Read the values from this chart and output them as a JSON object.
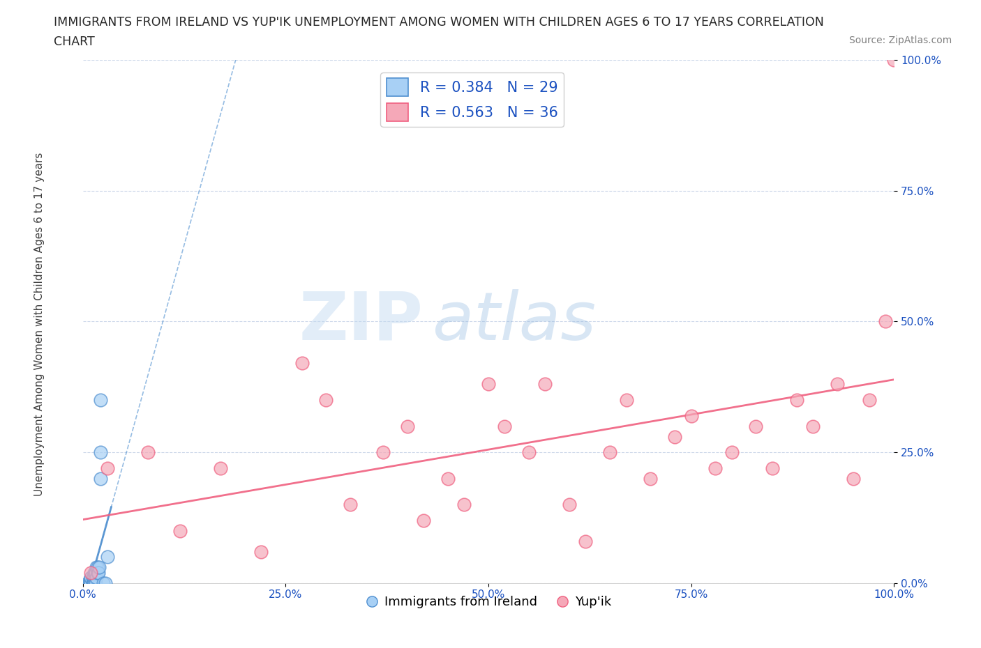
{
  "title_line1": "IMMIGRANTS FROM IRELAND VS YUP'IK UNEMPLOYMENT AMONG WOMEN WITH CHILDREN AGES 6 TO 17 YEARS CORRELATION",
  "title_line2": "CHART",
  "source": "Source: ZipAtlas.com",
  "ylabel": "Unemployment Among Women with Children Ages 6 to 17 years",
  "xlim": [
    0,
    1
  ],
  "ylim": [
    0,
    1
  ],
  "legend_ireland_R": "0.384",
  "legend_ireland_N": "29",
  "legend_yupik_R": "0.563",
  "legend_yupik_N": "36",
  "ireland_color": "#a8d0f5",
  "yupik_color": "#f5a8b8",
  "ireland_trend_color": "#5090d0",
  "yupik_trend_color": "#f06080",
  "watermark_zip": "ZIP",
  "watermark_atlas": "atlas",
  "background_color": "#ffffff",
  "grid_color": "#c8d4e8",
  "title_color": "#282828",
  "legend_text_color": "#1a50c0",
  "ireland_x": [
    0.005,
    0.007,
    0.008,
    0.009,
    0.01,
    0.01,
    0.01,
    0.012,
    0.012,
    0.013,
    0.013,
    0.014,
    0.014,
    0.015,
    0.015,
    0.016,
    0.016,
    0.017,
    0.017,
    0.018,
    0.018,
    0.019,
    0.02,
    0.022,
    0.025,
    0.028,
    0.03,
    0.022,
    0.022
  ],
  "ireland_y": [
    0.0,
    0.0,
    0.0,
    0.0,
    0.0,
    0.01,
    0.01,
    0.0,
    0.01,
    0.0,
    0.01,
    0.0,
    0.02,
    0.01,
    0.02,
    0.0,
    0.02,
    0.01,
    0.03,
    0.02,
    0.03,
    0.02,
    0.03,
    0.2,
    0.0,
    0.0,
    0.05,
    0.35,
    0.25
  ],
  "yupik_x": [
    0.01,
    0.03,
    0.08,
    0.12,
    0.17,
    0.22,
    0.27,
    0.3,
    0.33,
    0.37,
    0.4,
    0.42,
    0.45,
    0.47,
    0.5,
    0.52,
    0.55,
    0.57,
    0.6,
    0.62,
    0.65,
    0.67,
    0.7,
    0.73,
    0.75,
    0.78,
    0.8,
    0.83,
    0.85,
    0.88,
    0.9,
    0.93,
    0.95,
    0.97,
    0.99,
    1.0
  ],
  "yupik_y": [
    0.02,
    0.22,
    0.25,
    0.1,
    0.22,
    0.06,
    0.42,
    0.35,
    0.15,
    0.25,
    0.3,
    0.12,
    0.2,
    0.15,
    0.38,
    0.3,
    0.25,
    0.38,
    0.15,
    0.08,
    0.25,
    0.35,
    0.2,
    0.28,
    0.32,
    0.22,
    0.25,
    0.3,
    0.22,
    0.35,
    0.3,
    0.38,
    0.2,
    0.35,
    0.5,
    1.0
  ],
  "tick_color": "#1a50c0"
}
